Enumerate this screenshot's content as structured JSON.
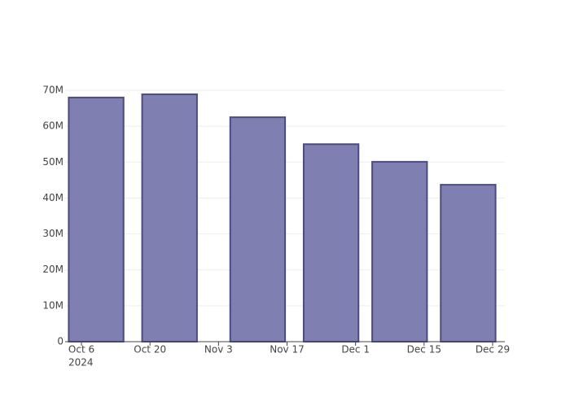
{
  "chart_data": {
    "type": "bar",
    "x": [
      "2024-10-09",
      "2024-10-24",
      "2024-11-11",
      "2024-11-26",
      "2024-12-10",
      "2024-12-24"
    ],
    "values": [
      68000000,
      68900000,
      62500000,
      55000000,
      50100000,
      43700000
    ],
    "color": "#7f7fb1",
    "edge_color": "#4b4b80",
    "bar_width_days": 11.2,
    "xlim": [
      "2024-10-02T16:00:00",
      "2024-12-31T12:00:00"
    ],
    "xticks": [
      {
        "value": "2024-10-06",
        "label": "Oct 6"
      },
      {
        "value": "2024-10-20",
        "label": "Oct 20"
      },
      {
        "value": "2024-11-03",
        "label": "Nov 3"
      },
      {
        "value": "2024-11-17",
        "label": "Nov 17"
      },
      {
        "value": "2024-12-01",
        "label": "Dec 1"
      },
      {
        "value": "2024-12-15",
        "label": "Dec 15"
      },
      {
        "value": "2024-12-29",
        "label": "Dec 29"
      }
    ],
    "x_year_label": "2024",
    "ylim": [
      0,
      72500000
    ],
    "yticks": [
      0,
      {
        "value": 10000000,
        "label": "10M"
      },
      {
        "value": 20000000,
        "label": "20M"
      },
      {
        "value": 30000000,
        "label": "30M"
      },
      {
        "value": 40000000,
        "label": "40M"
      },
      {
        "value": 50000000,
        "label": "50M"
      },
      {
        "value": 60000000,
        "label": "60M"
      },
      {
        "value": 70000000,
        "label": "70M"
      }
    ],
    "grid": true
  }
}
